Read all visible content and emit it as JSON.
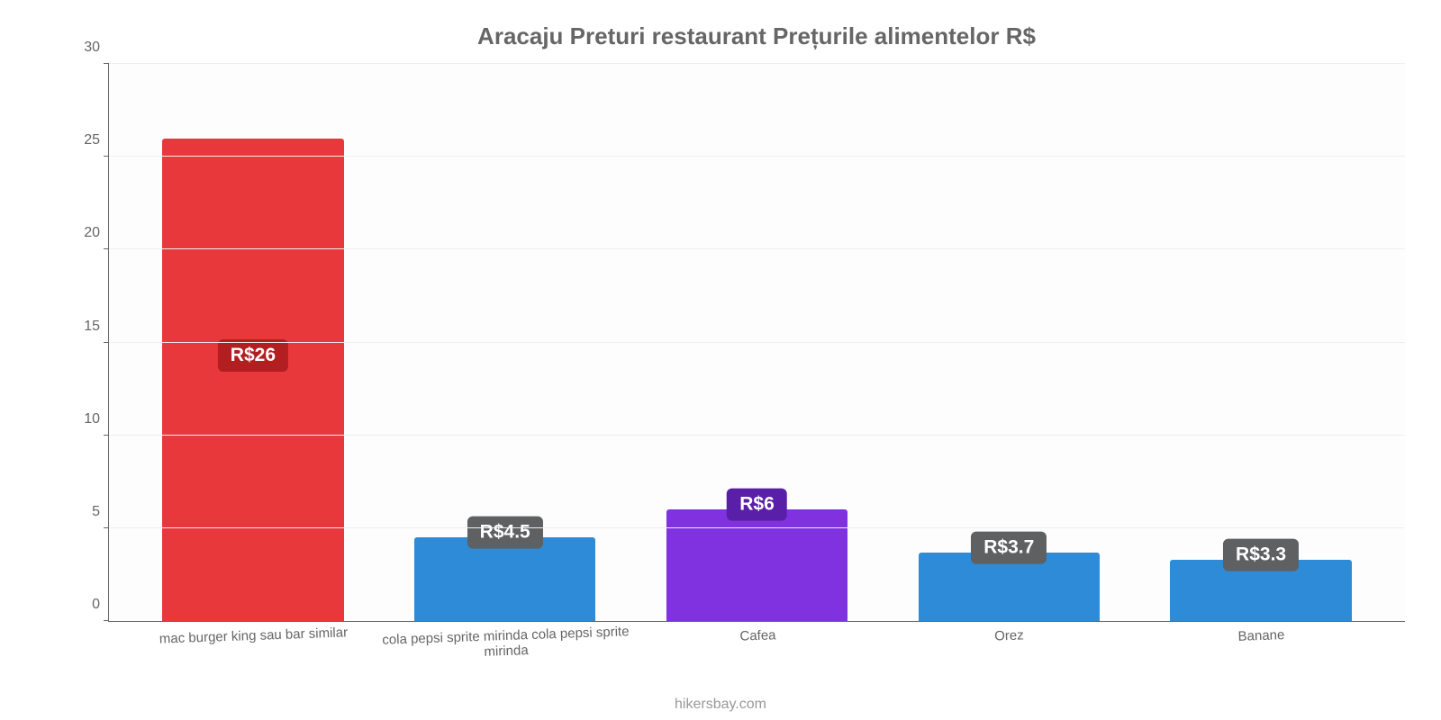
{
  "chart": {
    "type": "bar",
    "title": "Aracaju Preturi restaurant Prețurile alimentelor R$",
    "title_color": "#666666",
    "title_fontsize": 26,
    "background_color": "#ffffff",
    "plot_background": "#fdfdfd",
    "grid_color": "#eeeeee",
    "axis_color": "#666666",
    "label_color": "#666666",
    "ylim_min": 0,
    "ylim_max": 30,
    "ytick_step": 5,
    "yticks": [
      0,
      5,
      10,
      15,
      20,
      25,
      30
    ],
    "bar_width_pct": 72,
    "categories": [
      "mac burger king sau bar similar",
      "cola pepsi sprite mirinda cola pepsi sprite mirinda",
      "Cafea",
      "Orez",
      "Banane"
    ],
    "values": [
      26,
      4.5,
      6,
      3.7,
      3.3
    ],
    "value_labels": [
      "R$26",
      "R$4.5",
      "R$6",
      "R$3.7",
      "R$3.3"
    ],
    "bar_colors": [
      "#e8383b",
      "#2d8bd8",
      "#8032e0",
      "#2d8bd8",
      "#2d8bd8"
    ],
    "badge_colors": [
      "#b31e20",
      "#5e6062",
      "#5a1fa8",
      "#5e6062",
      "#5e6062"
    ],
    "badge_fontsize": 21,
    "badge_text_color": "#ffffff",
    "source": "hikersbay.com",
    "source_color": "#999999"
  }
}
